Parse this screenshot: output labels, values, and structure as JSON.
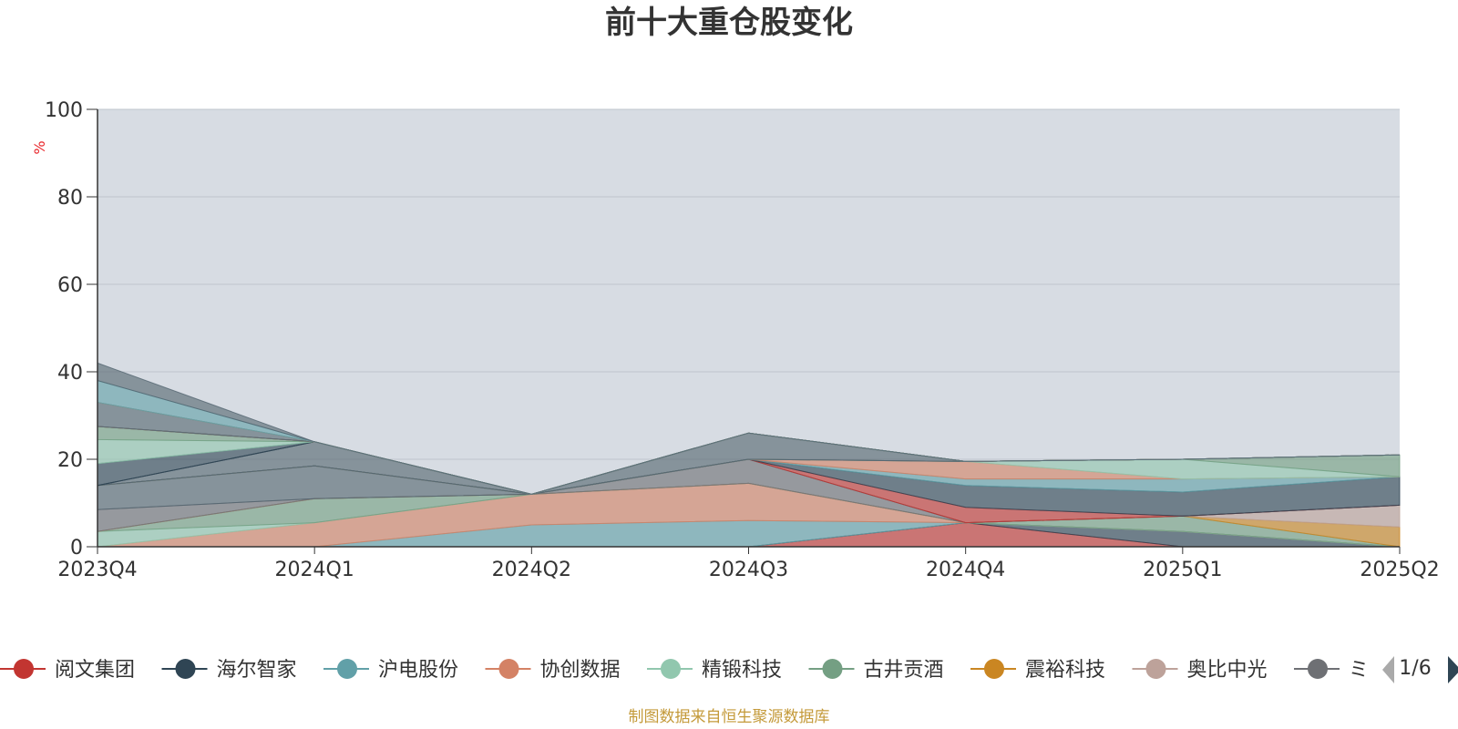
{
  "title": "前十大重仓股变化",
  "source_note": "制图数据来自恒生聚源数据库",
  "legend_page": "1/6",
  "truncated_legend_glyph": "ミ",
  "chart_data": {
    "type": "area",
    "stacked": true,
    "title": "前十大重仓股变化",
    "ylabel": "%",
    "ylim": [
      0,
      100
    ],
    "y_ticks": [
      0,
      20,
      40,
      60,
      80,
      100
    ],
    "grid": true,
    "plot_background": "#d7dce3",
    "x": [
      "2023Q4",
      "2024Q1",
      "2024Q2",
      "2024Q3",
      "2024Q4",
      "2025Q1",
      "2025Q2"
    ],
    "series": [
      {
        "name": "阅文集团",
        "color": "#c23531",
        "values": [
          0,
          0,
          0,
          0,
          5.5,
          0,
          0
        ]
      },
      {
        "name": "海尔智家",
        "color": "#2f4554",
        "values": [
          0,
          0,
          0,
          0,
          0,
          3.5,
          0
        ]
      },
      {
        "name": "沪电股份",
        "color": "#61a0a8",
        "values": [
          0,
          0,
          5,
          6,
          0,
          0,
          0
        ]
      },
      {
        "name": "协创数据",
        "color": "#d48265",
        "values": [
          0,
          5.5,
          7,
          8.5,
          0,
          0,
          0
        ]
      },
      {
        "name": "精锻科技",
        "color": "#91c7ae",
        "values": [
          3.5,
          0,
          0,
          0,
          0,
          0,
          0
        ]
      },
      {
        "name": "古井贡酒",
        "color": "#749f83",
        "values": [
          0,
          5.5,
          0,
          0,
          0,
          3.5,
          0
        ]
      },
      {
        "name": "震裕科技",
        "color": "#ca8622",
        "values": [
          0,
          0,
          0,
          0,
          0,
          0,
          4.5
        ]
      },
      {
        "name": "奥比中光",
        "color": "#bda29a",
        "values": [
          0,
          0,
          0,
          0,
          0,
          0,
          5
        ]
      },
      {
        "name": "",
        "color": "#6e7074",
        "values": [
          5,
          0,
          0,
          5.5,
          0,
          0,
          0
        ]
      },
      {
        "name": "",
        "color": "#546570",
        "values": [
          5.5,
          7.5,
          0,
          0,
          0,
          0,
          0
        ]
      },
      {
        "name": "",
        "color": "#c23531",
        "values": [
          0,
          0,
          0,
          0,
          3.5,
          0,
          0
        ]
      },
      {
        "name": "",
        "color": "#2f4554",
        "values": [
          0,
          0,
          0,
          0,
          5,
          5.5,
          6.5
        ]
      },
      {
        "name": "",
        "color": "#61a0a8",
        "values": [
          0,
          0,
          0,
          0,
          1.5,
          3,
          0
        ]
      },
      {
        "name": "",
        "color": "#d48265",
        "values": [
          0,
          0,
          0,
          0,
          4,
          0,
          0
        ]
      },
      {
        "name": "",
        "color": "#91c7ae",
        "values": [
          0,
          0,
          0,
          0,
          0,
          4.5,
          0
        ]
      },
      {
        "name": "",
        "color": "#749f83",
        "values": [
          0,
          0,
          0,
          0,
          0,
          0,
          5
        ]
      },
      {
        "name": "",
        "color": "#6e7074",
        "values": [
          0,
          0,
          0,
          0,
          0,
          0,
          0
        ]
      },
      {
        "name": "",
        "color": "#546570",
        "values": [
          0,
          5.5,
          0,
          6,
          0,
          0,
          0
        ]
      },
      {
        "name": "",
        "color": "#2f4554",
        "values": [
          0,
          0,
          0,
          0,
          0,
          0,
          0
        ]
      },
      {
        "name": "",
        "color": "#2f4554",
        "values": [
          5,
          0,
          0,
          0,
          0,
          0,
          0
        ]
      },
      {
        "name": "",
        "color": "#91c7ae",
        "values": [
          5.5,
          0,
          0,
          0,
          0,
          0,
          0
        ]
      },
      {
        "name": "",
        "color": "#749f83",
        "values": [
          3,
          0,
          0,
          0,
          0,
          0,
          0
        ]
      },
      {
        "name": "",
        "color": "#ca8622",
        "values": [
          0,
          0,
          0,
          0,
          0,
          0,
          0
        ]
      },
      {
        "name": "",
        "color": "#2f4554",
        "values": [
          0,
          0,
          0,
          0,
          0,
          0,
          0
        ]
      },
      {
        "name": "",
        "color": "#bda29a",
        "values": [
          0,
          0,
          0,
          0,
          0,
          0,
          0
        ]
      },
      {
        "name": "",
        "color": "#546570",
        "values": [
          5.5,
          0,
          0,
          0,
          0,
          0,
          0
        ]
      },
      {
        "name": "",
        "color": "#61a0a8",
        "values": [
          0,
          0,
          0,
          0,
          0,
          0,
          0
        ]
      },
      {
        "name": "",
        "color": "#d48265",
        "values": [
          0,
          0,
          0,
          0,
          0,
          0,
          0
        ]
      },
      {
        "name": "",
        "color": "#61a0a8",
        "values": [
          5,
          0,
          0,
          0,
          0,
          0,
          0
        ]
      },
      {
        "name": "",
        "color": "#546570",
        "values": [
          4,
          0,
          0,
          0,
          0,
          0,
          0
        ]
      }
    ]
  }
}
